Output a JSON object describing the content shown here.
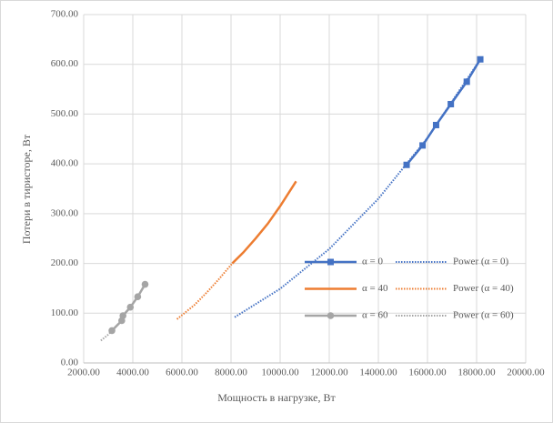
{
  "chart_data": {
    "type": "scatter",
    "x_label": "Мощность в нагрузке, Вт",
    "y_label": "Потери в тиристоре, Вт",
    "xlim": [
      2000,
      20000
    ],
    "xticks": [
      {
        "value": 2000,
        "label": "2000.00"
      },
      {
        "value": 4000,
        "label": "4000.00"
      },
      {
        "value": 6000,
        "label": "6000.00"
      },
      {
        "value": 8000,
        "label": "8000.00"
      },
      {
        "value": 10000,
        "label": "10000.00"
      },
      {
        "value": 12000,
        "label": "12000.00"
      },
      {
        "value": 14000,
        "label": "14000.00"
      },
      {
        "value": 16000,
        "label": "16000.00"
      },
      {
        "value": 18000,
        "label": "18000.00"
      },
      {
        "value": 20000,
        "label": "20000.00"
      }
    ],
    "ylim": [
      0,
      700
    ],
    "yticks": [
      {
        "value": 0,
        "label": "0.00"
      },
      {
        "value": 100,
        "label": "100.00"
      },
      {
        "value": 200,
        "label": "200.00"
      },
      {
        "value": 300,
        "label": "300.00"
      },
      {
        "value": 400,
        "label": "400.00"
      },
      {
        "value": 500,
        "label": "500.00"
      },
      {
        "value": 600,
        "label": "600.00"
      },
      {
        "value": 700,
        "label": "700.00"
      }
    ],
    "grid": true,
    "legend": "right",
    "series": [
      {
        "name": "α = 0",
        "color": "#4472c4",
        "marker": "square",
        "style": "solid",
        "x": [
          15150,
          15800,
          16350,
          16950,
          17600,
          18150
        ],
        "values": [
          398,
          437,
          478,
          520,
          565,
          610
        ]
      },
      {
        "name": "Power (α = 0)",
        "color": "#4472c4",
        "marker": "none",
        "style": "dotted",
        "x": [
          8150,
          10000,
          12000,
          14000,
          16000,
          18150
        ],
        "values": [
          92,
          149,
          229,
          330,
          452,
          610
        ]
      },
      {
        "name": "α = 40",
        "color": "#ed7d31",
        "marker": "none",
        "style": "solid",
        "x": [
          8050,
          8500,
          9000,
          9500,
          10000,
          10650
        ],
        "values": [
          200,
          222,
          250,
          280,
          315,
          365
        ]
      },
      {
        "name": "Power (α = 40)",
        "color": "#ed7d31",
        "marker": "none",
        "style": "dotted",
        "x": [
          5800,
          6500,
          7000,
          7500,
          8050
        ],
        "values": [
          88,
          116,
          141,
          168,
          200
        ]
      },
      {
        "name": "α = 60",
        "color": "#a5a5a5",
        "marker": "circle",
        "style": "solid",
        "x": [
          3150,
          3550,
          3600,
          3900,
          4200,
          4500
        ],
        "values": [
          65,
          85,
          95,
          112,
          133,
          158
        ]
      },
      {
        "name": "Power (α = 60)",
        "color": "#a5a5a5",
        "marker": "none",
        "style": "dotted",
        "x": [
          2700,
          3000,
          3150
        ],
        "values": [
          45,
          57,
          65
        ]
      }
    ]
  }
}
